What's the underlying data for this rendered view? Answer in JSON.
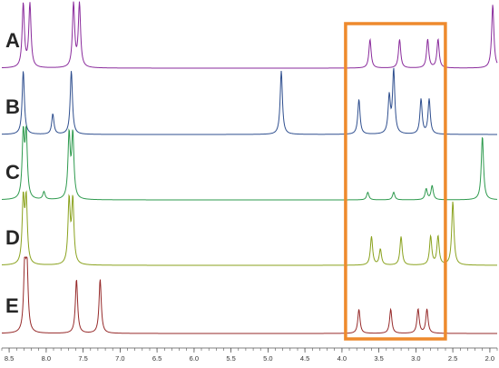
{
  "colors": {
    "background": "#ffffff",
    "axis": "#555555",
    "highlight_box": "#ee8a2d",
    "baseline": "#d9d9d9"
  },
  "chart_data": {
    "type": "line",
    "title": "",
    "xlabel": "",
    "ylabel": "",
    "x_axis": {
      "reversed": true,
      "xlim": [
        8.6,
        1.9
      ],
      "ticks": [
        8.5,
        8.0,
        7.5,
        7.0,
        6.5,
        6.0,
        5.5,
        5.0,
        4.5,
        4.0,
        3.5,
        3.0,
        2.5,
        2.0
      ],
      "tick_labels": [
        "8.5",
        "8.0",
        "7.5",
        "7.0",
        "6.5",
        "6.0",
        "5.5",
        "5.0",
        "4.5",
        "4.0",
        "3.5",
        "3.0",
        "2.5",
        "2.0"
      ]
    },
    "highlight_region": {
      "x_range": [
        3.95,
        2.6
      ],
      "color": "#ee8a2d"
    },
    "series": [
      {
        "name": "A",
        "color": "#8a2b9c",
        "peaks": [
          {
            "x": 8.31,
            "h": 1.0
          },
          {
            "x": 8.22,
            "h": 1.0
          },
          {
            "x": 7.63,
            "h": 1.0
          },
          {
            "x": 7.55,
            "h": 1.0
          },
          {
            "x": 3.62,
            "h": 0.45
          },
          {
            "x": 3.22,
            "h": 0.45
          },
          {
            "x": 2.84,
            "h": 0.45
          },
          {
            "x": 2.7,
            "h": 0.45
          },
          {
            "x": 1.96,
            "h": 1.0
          }
        ]
      },
      {
        "name": "B",
        "color": "#2f4f8f",
        "peaks": [
          {
            "x": 8.31,
            "h": 1.0
          },
          {
            "x": 7.91,
            "h": 0.32
          },
          {
            "x": 7.66,
            "h": 1.0
          },
          {
            "x": 4.82,
            "h": 1.0
          },
          {
            "x": 3.77,
            "h": 0.55
          },
          {
            "x": 3.36,
            "h": 0.58
          },
          {
            "x": 3.3,
            "h": 1.0
          },
          {
            "x": 2.93,
            "h": 0.55
          },
          {
            "x": 2.82,
            "h": 0.55
          }
        ]
      },
      {
        "name": "C",
        "color": "#2e9a4e",
        "peaks": [
          {
            "x": 8.31,
            "h": 1.0
          },
          {
            "x": 8.27,
            "h": 1.0
          },
          {
            "x": 8.03,
            "h": 0.12
          },
          {
            "x": 7.69,
            "h": 1.0
          },
          {
            "x": 7.64,
            "h": 1.0
          },
          {
            "x": 3.65,
            "h": 0.12
          },
          {
            "x": 3.3,
            "h": 0.12
          },
          {
            "x": 2.86,
            "h": 0.17
          },
          {
            "x": 2.78,
            "h": 0.22
          },
          {
            "x": 2.1,
            "h": 1.0
          }
        ]
      },
      {
        "name": "D",
        "color": "#8aa21e",
        "peaks": [
          {
            "x": 8.31,
            "h": 1.0
          },
          {
            "x": 8.27,
            "h": 1.0
          },
          {
            "x": 7.69,
            "h": 1.0
          },
          {
            "x": 7.64,
            "h": 1.0
          },
          {
            "x": 3.6,
            "h": 0.45
          },
          {
            "x": 3.48,
            "h": 0.25
          },
          {
            "x": 3.2,
            "h": 0.45
          },
          {
            "x": 2.8,
            "h": 0.45
          },
          {
            "x": 2.7,
            "h": 0.45
          },
          {
            "x": 2.5,
            "h": 1.0
          }
        ]
      },
      {
        "name": "E",
        "color": "#962a2a",
        "peaks": [
          {
            "x": 8.29,
            "h": 1.0
          },
          {
            "x": 8.26,
            "h": 1.0
          },
          {
            "x": 7.59,
            "h": 0.85
          },
          {
            "x": 7.27,
            "h": 0.85
          },
          {
            "x": 3.77,
            "h": 0.38
          },
          {
            "x": 3.34,
            "h": 0.38
          },
          {
            "x": 2.97,
            "h": 0.38
          },
          {
            "x": 2.85,
            "h": 0.38
          }
        ]
      }
    ]
  }
}
